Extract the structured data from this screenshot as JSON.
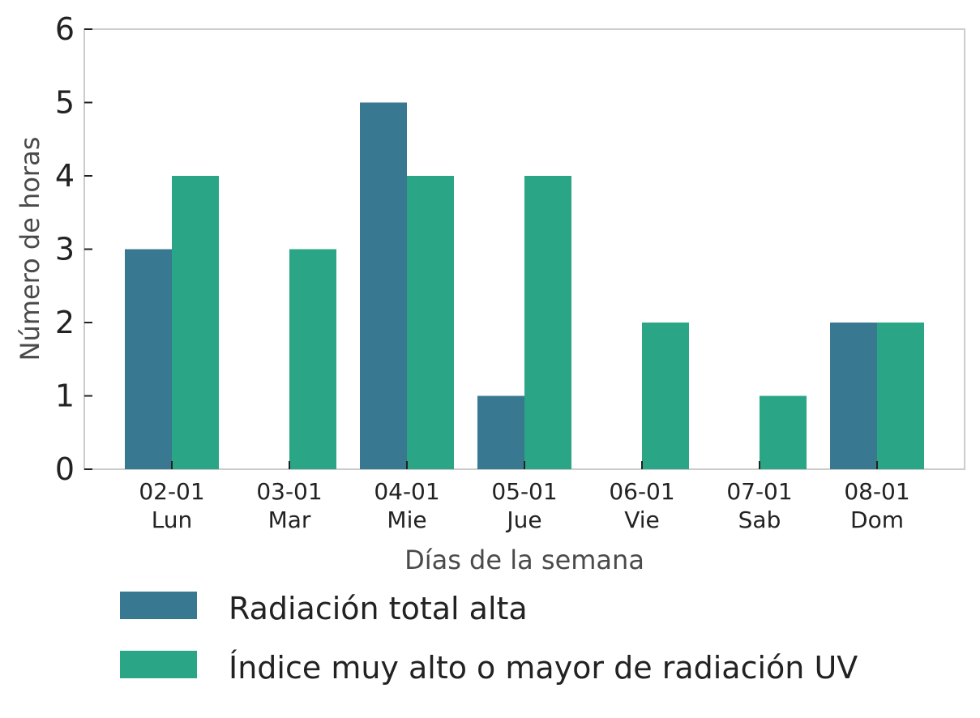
{
  "chart_data": {
    "type": "bar",
    "categories": [
      "02-01\nLun",
      "03-01\nMar",
      "04-01\nMie",
      "05-01\nJue",
      "06-01\nVie",
      "07-01\nSab",
      "08-01\nDom"
    ],
    "series": [
      {
        "name": "Radiación total alta",
        "color": "#387891",
        "values": [
          3,
          0,
          5,
          1,
          0,
          0,
          2
        ]
      },
      {
        "name": "Índice muy alto o mayor de radiación UV",
        "color": "#2aa586",
        "values": [
          4,
          3,
          4,
          4,
          2,
          1,
          2
        ]
      }
    ],
    "xlabel": "Días de la semana",
    "ylabel": "Número de horas",
    "ylim": [
      0,
      6
    ],
    "yticks": [
      0,
      1,
      2,
      3,
      4,
      5,
      6
    ],
    "grid": false,
    "legend_position": "bottom"
  }
}
